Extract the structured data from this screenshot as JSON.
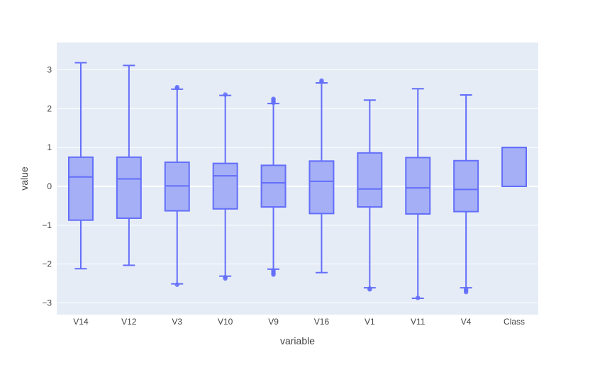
{
  "chart_data": {
    "type": "box",
    "xlabel": "variable",
    "ylabel": "value",
    "ylim": [
      -3.3,
      3.7
    ],
    "yticks": [
      3,
      2,
      1,
      0,
      -1,
      -2,
      -3
    ],
    "ytick_labels": [
      "3",
      "2",
      "1",
      "0",
      "−1",
      "−2",
      "−3"
    ],
    "grid": true,
    "plot_background": "#e5ecf6",
    "box_fill": "#a5aff6",
    "box_line": "#636efa",
    "categories": [
      "V14",
      "V12",
      "V3",
      "V10",
      "V9",
      "V16",
      "V1",
      "V11",
      "V4",
      "Class"
    ],
    "boxes": [
      {
        "name": "V14",
        "q1": -0.87,
        "median": 0.24,
        "q3": 0.75,
        "lower": -2.12,
        "upper": 3.18,
        "outliers": []
      },
      {
        "name": "V12",
        "q1": -0.82,
        "median": 0.19,
        "q3": 0.75,
        "lower": -2.03,
        "upper": 3.11,
        "outliers": []
      },
      {
        "name": "V3",
        "q1": -0.63,
        "median": 0.01,
        "q3": 0.62,
        "lower": -2.51,
        "upper": 2.5,
        "outliers": [
          2.53,
          2.55,
          -2.53
        ]
      },
      {
        "name": "V10",
        "q1": -0.58,
        "median": 0.27,
        "q3": 0.59,
        "lower": -2.31,
        "upper": 2.34,
        "outliers": [
          2.36,
          -2.34,
          -2.37
        ]
      },
      {
        "name": "V9",
        "q1": -0.53,
        "median": 0.09,
        "q3": 0.54,
        "lower": -2.13,
        "upper": 2.13,
        "outliers": [
          2.15,
          2.19,
          2.22,
          2.25,
          -2.16,
          -2.2,
          -2.24,
          -2.27
        ]
      },
      {
        "name": "V16",
        "q1": -0.7,
        "median": 0.13,
        "q3": 0.65,
        "lower": -2.22,
        "upper": 2.66,
        "outliers": [
          2.69,
          2.72
        ]
      },
      {
        "name": "V1",
        "q1": -0.53,
        "median": -0.07,
        "q3": 0.86,
        "lower": -2.61,
        "upper": 2.22,
        "outliers": [
          -2.63,
          -2.65
        ]
      },
      {
        "name": "V11",
        "q1": -0.71,
        "median": -0.04,
        "q3": 0.74,
        "lower": -2.88,
        "upper": 2.51,
        "outliers": [
          -2.87
        ]
      },
      {
        "name": "V4",
        "q1": -0.65,
        "median": -0.08,
        "q3": 0.66,
        "lower": -2.61,
        "upper": 2.35,
        "outliers": [
          -2.64,
          -2.68,
          -2.72
        ]
      },
      {
        "name": "Class",
        "q1": 0.0,
        "median": 1.0,
        "q3": 1.0,
        "lower": 0.0,
        "upper": 1.0,
        "outliers": []
      }
    ]
  }
}
